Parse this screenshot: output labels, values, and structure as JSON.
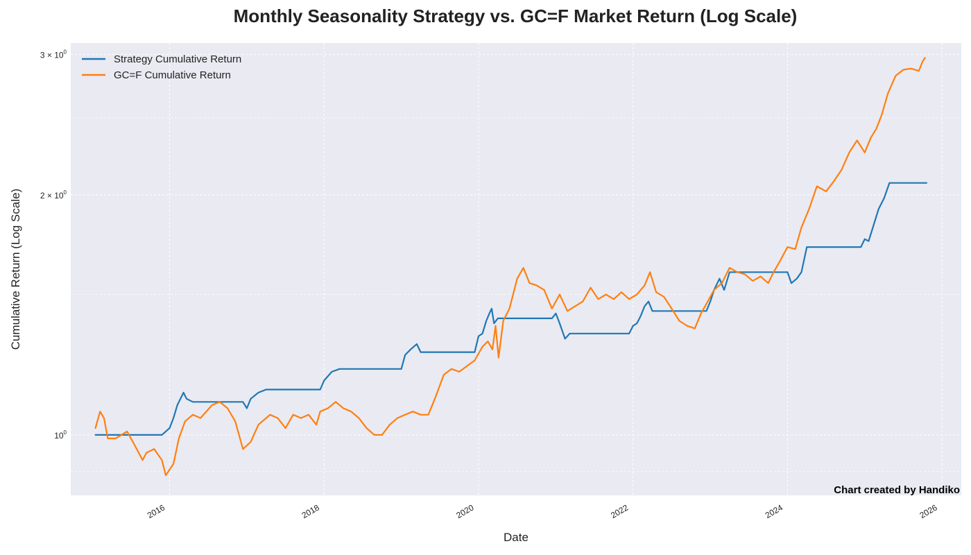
{
  "chart_data": {
    "type": "line",
    "title": "Monthly Seasonality Strategy vs. GC=F Market Return (Log Scale)",
    "xlabel": "Date",
    "ylabel": "Cumulative Return (Log Scale)",
    "y_scale": "log",
    "xlim": [
      2014.72,
      2026.25
    ],
    "ylim": [
      0.84,
      3.1
    ],
    "grid": true,
    "legend_position": "top-left",
    "credit": "Chart created by Handiko",
    "x_ticks": [
      {
        "value": 2016,
        "label": "2016"
      },
      {
        "value": 2018,
        "label": "2018"
      },
      {
        "value": 2020,
        "label": "2020"
      },
      {
        "value": 2022,
        "label": "2022"
      },
      {
        "value": 2024,
        "label": "2024"
      },
      {
        "value": 2026,
        "label": "2026"
      }
    ],
    "y_ticks": [
      {
        "value": 1,
        "base": "10",
        "exp": "0",
        "prefix": ""
      },
      {
        "value": 2,
        "base": "10",
        "exp": "0",
        "prefix": "2 × "
      },
      {
        "value": 3,
        "base": "10",
        "exp": "0",
        "prefix": "3 × "
      }
    ],
    "y_minor_ticks": [
      0.9,
      1.5,
      2.5
    ],
    "series": [
      {
        "name": "Strategy Cumulative Return",
        "color": "#1f77b4",
        "x": [
          2015.04,
          2015.9,
          2016.0,
          2016.05,
          2016.1,
          2016.18,
          2016.22,
          2016.3,
          2016.95,
          2017.0,
          2017.05,
          2017.15,
          2017.25,
          2017.3,
          2017.95,
          2018.0,
          2018.1,
          2018.2,
          2018.3,
          2019.0,
          2019.05,
          2019.12,
          2019.2,
          2019.25,
          2019.3,
          2019.95,
          2020.0,
          2020.05,
          2020.1,
          2020.14,
          2020.17,
          2020.2,
          2020.25,
          2020.28,
          2020.95,
          2021.0,
          2021.05,
          2021.12,
          2021.18,
          2021.25,
          2021.95,
          2022.0,
          2022.05,
          2022.1,
          2022.15,
          2022.2,
          2022.25,
          2022.3,
          2022.95,
          2023.0,
          2023.05,
          2023.12,
          2023.18,
          2023.25,
          2023.95,
          2024.0,
          2024.05,
          2024.12,
          2024.18,
          2024.25,
          2024.95,
          2025.0,
          2025.05,
          2025.12,
          2025.18,
          2025.25,
          2025.32,
          2025.8
        ],
        "y": [
          1.0,
          1.0,
          1.02,
          1.05,
          1.09,
          1.13,
          1.11,
          1.1,
          1.1,
          1.08,
          1.11,
          1.13,
          1.14,
          1.14,
          1.14,
          1.17,
          1.2,
          1.21,
          1.21,
          1.21,
          1.26,
          1.28,
          1.3,
          1.27,
          1.27,
          1.27,
          1.33,
          1.34,
          1.39,
          1.42,
          1.44,
          1.38,
          1.4,
          1.4,
          1.4,
          1.42,
          1.38,
          1.32,
          1.34,
          1.34,
          1.34,
          1.37,
          1.38,
          1.41,
          1.45,
          1.47,
          1.43,
          1.43,
          1.43,
          1.47,
          1.52,
          1.57,
          1.52,
          1.6,
          1.6,
          1.6,
          1.55,
          1.57,
          1.6,
          1.72,
          1.72,
          1.76,
          1.75,
          1.84,
          1.92,
          1.98,
          2.07,
          2.07
        ]
      },
      {
        "name": "GC=F Cumulative Return",
        "color": "#ff7f0e",
        "x": [
          2015.04,
          2015.1,
          2015.15,
          2015.2,
          2015.3,
          2015.45,
          2015.55,
          2015.65,
          2015.7,
          2015.8,
          2015.9,
          2015.95,
          2016.05,
          2016.12,
          2016.2,
          2016.3,
          2016.4,
          2016.55,
          2016.65,
          2016.75,
          2016.85,
          2016.95,
          2017.05,
          2017.15,
          2017.3,
          2017.4,
          2017.5,
          2017.6,
          2017.7,
          2017.8,
          2017.9,
          2017.95,
          2018.05,
          2018.15,
          2018.25,
          2018.35,
          2018.45,
          2018.55,
          2018.65,
          2018.75,
          2018.85,
          2018.95,
          2019.05,
          2019.15,
          2019.25,
          2019.35,
          2019.45,
          2019.55,
          2019.65,
          2019.75,
          2019.85,
          2019.95,
          2020.05,
          2020.12,
          2020.18,
          2020.22,
          2020.26,
          2020.32,
          2020.4,
          2020.5,
          2020.58,
          2020.66,
          2020.75,
          2020.85,
          2020.95,
          2021.05,
          2021.15,
          2021.25,
          2021.35,
          2021.45,
          2021.55,
          2021.65,
          2021.75,
          2021.85,
          2021.95,
          2022.05,
          2022.15,
          2022.22,
          2022.3,
          2022.4,
          2022.5,
          2022.6,
          2022.7,
          2022.8,
          2022.88,
          2022.95,
          2023.05,
          2023.15,
          2023.25,
          2023.35,
          2023.45,
          2023.55,
          2023.65,
          2023.75,
          2023.82,
          2023.9,
          2024.0,
          2024.1,
          2024.18,
          2024.28,
          2024.38,
          2024.5,
          2024.6,
          2024.7,
          2024.8,
          2024.9,
          2025.0,
          2025.08,
          2025.15,
          2025.22,
          2025.3,
          2025.4,
          2025.5,
          2025.6,
          2025.7,
          2025.75,
          2025.78
        ],
        "y": [
          1.02,
          1.07,
          1.05,
          0.99,
          0.99,
          1.01,
          0.97,
          0.93,
          0.95,
          0.96,
          0.93,
          0.89,
          0.92,
          0.99,
          1.04,
          1.06,
          1.05,
          1.09,
          1.1,
          1.08,
          1.04,
          0.96,
          0.98,
          1.03,
          1.06,
          1.05,
          1.02,
          1.06,
          1.05,
          1.06,
          1.03,
          1.07,
          1.08,
          1.1,
          1.08,
          1.07,
          1.05,
          1.02,
          1.0,
          1.0,
          1.03,
          1.05,
          1.06,
          1.07,
          1.06,
          1.06,
          1.12,
          1.19,
          1.21,
          1.2,
          1.22,
          1.24,
          1.29,
          1.31,
          1.28,
          1.37,
          1.25,
          1.39,
          1.44,
          1.57,
          1.62,
          1.55,
          1.54,
          1.52,
          1.44,
          1.5,
          1.43,
          1.45,
          1.47,
          1.53,
          1.48,
          1.5,
          1.48,
          1.51,
          1.48,
          1.5,
          1.54,
          1.6,
          1.51,
          1.49,
          1.44,
          1.39,
          1.37,
          1.36,
          1.42,
          1.46,
          1.52,
          1.55,
          1.62,
          1.6,
          1.59,
          1.56,
          1.58,
          1.55,
          1.6,
          1.65,
          1.72,
          1.71,
          1.82,
          1.92,
          2.05,
          2.02,
          2.08,
          2.15,
          2.26,
          2.34,
          2.26,
          2.36,
          2.42,
          2.52,
          2.68,
          2.82,
          2.87,
          2.88,
          2.86,
          2.94,
          2.97
        ]
      }
    ]
  }
}
